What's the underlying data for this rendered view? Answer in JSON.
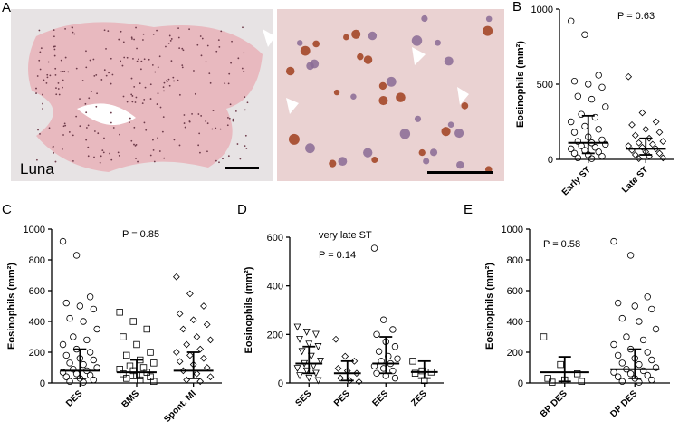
{
  "panel_a": {
    "label": "A",
    "stain": "Luna"
  },
  "chart_data": [
    {
      "type": "strip",
      "panel": "B",
      "ylabel": "Eosinophils (mm²)",
      "annotation": "P = 0.63",
      "categories": [
        "Early ST",
        "Late ST"
      ],
      "markers": [
        "circle",
        "diamond"
      ],
      "points": [
        [
          920,
          830,
          560,
          520,
          500,
          480,
          420,
          400,
          350,
          300,
          280,
          250,
          220,
          200,
          180,
          150,
          130,
          120,
          110,
          100,
          90,
          80,
          70,
          60,
          50,
          40,
          30,
          20,
          10,
          5
        ],
        [
          550,
          310,
          250,
          230,
          200,
          180,
          160,
          140,
          120,
          110,
          100,
          90,
          80,
          70,
          60,
          50,
          40,
          30,
          20,
          10,
          5
        ]
      ],
      "median": [
        110,
        70
      ],
      "q1": [
        40,
        30
      ],
      "q3": [
        290,
        140
      ],
      "ylim": [
        0,
        1000
      ],
      "yticks": [
        0,
        500,
        1000
      ]
    },
    {
      "type": "strip",
      "panel": "C",
      "ylabel": "Eosinophils (mm²)",
      "annotation": "P = 0.85",
      "categories": [
        "DES",
        "BMS",
        "Spont. MI"
      ],
      "markers": [
        "circle",
        "square",
        "diamond"
      ],
      "points": [
        [
          920,
          830,
          560,
          520,
          500,
          480,
          420,
          400,
          350,
          300,
          280,
          250,
          220,
          200,
          180,
          160,
          150,
          130,
          120,
          100,
          90,
          80,
          70,
          60,
          50,
          40,
          30,
          20,
          10,
          5
        ],
        [
          460,
          400,
          350,
          300,
          250,
          200,
          180,
          150,
          130,
          110,
          100,
          90,
          80,
          70,
          60,
          50,
          40,
          30,
          20,
          10
        ],
        [
          690,
          580,
          500,
          450,
          410,
          380,
          350,
          300,
          280,
          250,
          220,
          200,
          180,
          160,
          140,
          120,
          100,
          80,
          60,
          40,
          20,
          10
        ]
      ],
      "median": [
        80,
        70,
        80
      ],
      "q1": [
        30,
        30,
        30
      ],
      "q3": [
        220,
        150,
        200
      ],
      "ylim": [
        0,
        1000
      ],
      "yticks": [
        0,
        200,
        400,
        600,
        800,
        1000
      ]
    },
    {
      "type": "strip",
      "panel": "D",
      "ylabel": "Eosinophils (mm²)",
      "subtitle": "very late ST",
      "annotation": "P = 0.14",
      "categories": [
        "SES",
        "PES",
        "EES",
        "ZES"
      ],
      "markers": [
        "triangle-down",
        "diamond",
        "circle",
        "square"
      ],
      "points": [
        [
          230,
          210,
          200,
          180,
          160,
          150,
          130,
          110,
          90,
          80,
          70,
          60,
          50,
          40,
          30,
          20,
          10
        ],
        [
          180,
          110,
          90,
          60,
          50,
          40,
          20,
          10,
          5
        ],
        [
          555,
          260,
          220,
          200,
          170,
          150,
          130,
          110,
          100,
          90,
          80,
          70,
          60,
          50,
          40,
          30,
          20
        ],
        [
          90,
          50,
          45,
          40,
          10
        ]
      ],
      "median": [
        80,
        40,
        80,
        45
      ],
      "q1": [
        40,
        10,
        40,
        20
      ],
      "q3": [
        150,
        90,
        190,
        90
      ],
      "ylim": [
        0,
        600
      ],
      "yticks": [
        0,
        200,
        400,
        600
      ]
    },
    {
      "type": "strip",
      "panel": "E",
      "ylabel": "Eosinophils (mm²)",
      "annotation": "P = 0.58",
      "categories": [
        "BP DES",
        "DP DES"
      ],
      "markers": [
        "square",
        "circle"
      ],
      "points": [
        [
          300,
          120,
          60,
          30,
          20,
          10,
          5
        ],
        [
          920,
          830,
          560,
          520,
          500,
          480,
          420,
          400,
          350,
          300,
          280,
          250,
          220,
          200,
          180,
          160,
          150,
          130,
          120,
          100,
          90,
          80,
          70,
          60,
          50,
          40,
          30,
          20,
          10,
          5
        ]
      ],
      "median": [
        70,
        90
      ],
      "q1": [
        10,
        30
      ],
      "q3": [
        170,
        220
      ],
      "ylim": [
        0,
        1000
      ],
      "yticks": [
        0,
        200,
        400,
        600,
        800,
        1000
      ]
    }
  ]
}
